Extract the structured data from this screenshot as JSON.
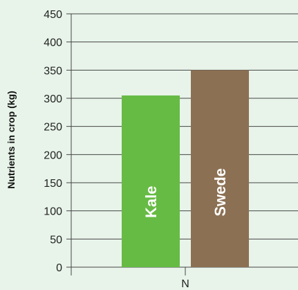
{
  "chart_data": {
    "type": "bar",
    "categories": [
      "N"
    ],
    "series": [
      {
        "name": "Kale",
        "values": [
          305
        ],
        "color": "#66bb44"
      },
      {
        "name": "Swede",
        "values": [
          350
        ],
        "color": "#8c7053"
      }
    ],
    "title": "",
    "xlabel": "",
    "ylabel": "Nutrients in crop (kg)",
    "ylim": [
      0,
      450
    ],
    "yticks": [
      0,
      50,
      100,
      150,
      200,
      250,
      300,
      350,
      400,
      450
    ],
    "grid": true,
    "legend": "none",
    "labels_inside_bars": true
  },
  "colors": {
    "background": "#e8f4ea",
    "grid": "#444444",
    "axis": "#444444"
  }
}
